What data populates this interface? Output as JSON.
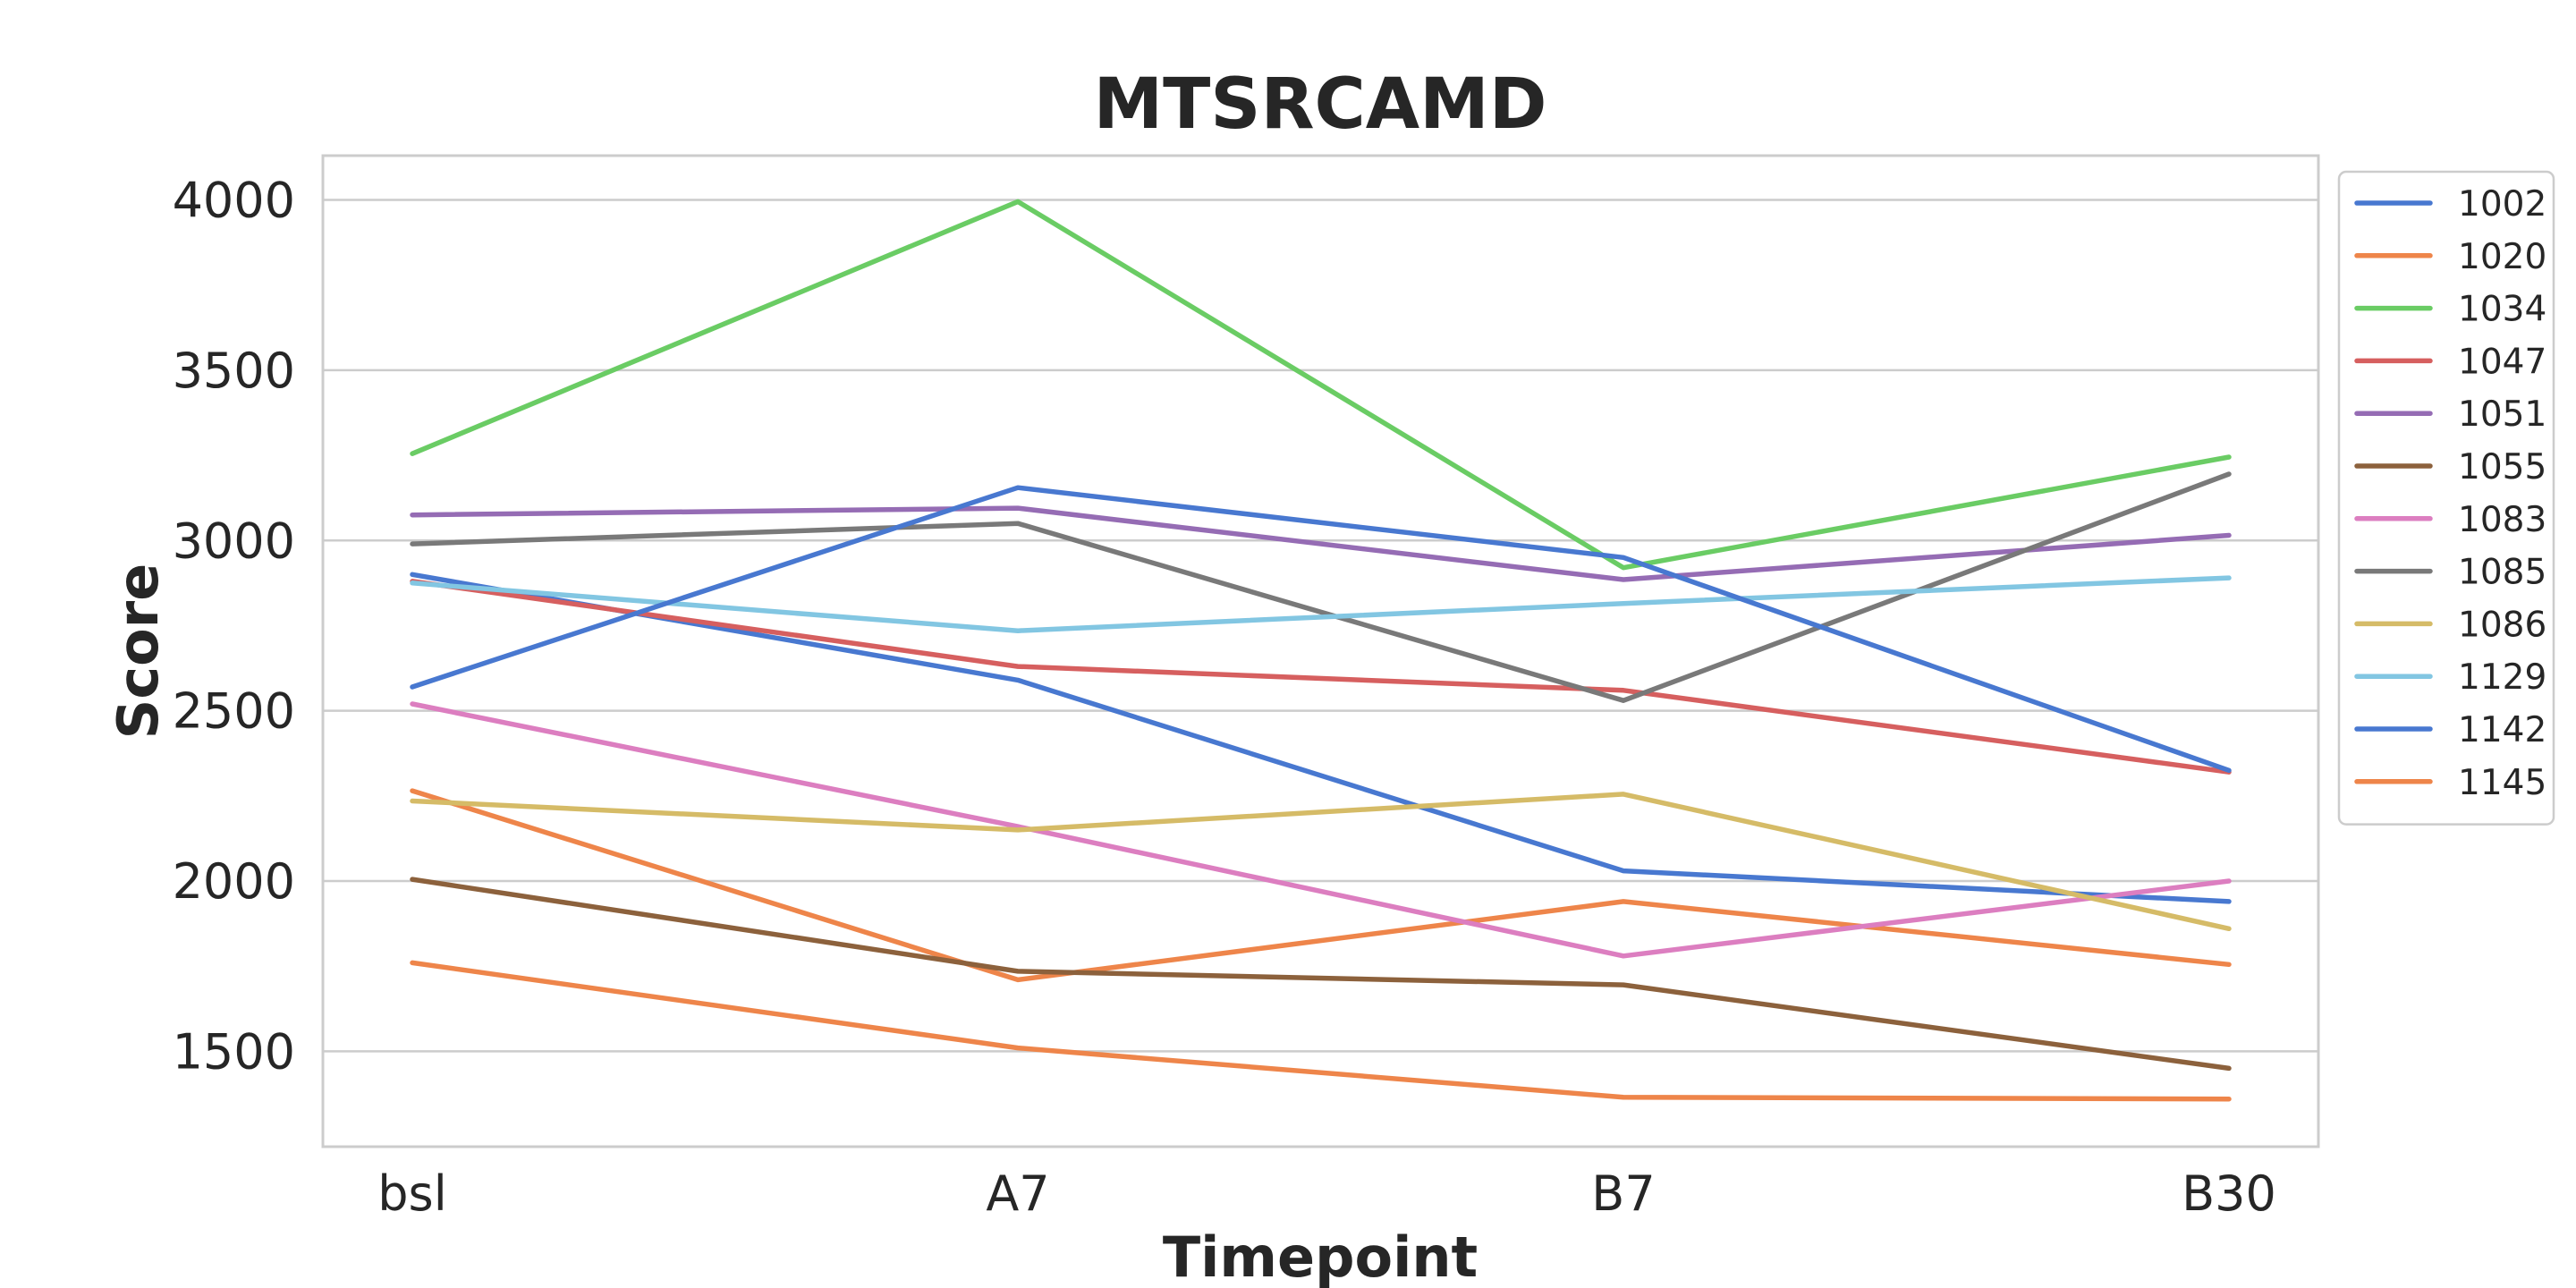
{
  "chart_data": {
    "type": "line",
    "title": "MTSRCAMD",
    "xlabel": "Timepoint",
    "ylabel": "Score",
    "categories": [
      "bsl",
      "A7",
      "B7",
      "B30"
    ],
    "yticks": [
      1500,
      2000,
      2500,
      3000,
      3500,
      4000
    ],
    "ylim": [
      1220,
      4130
    ],
    "grid": "horizontal",
    "legend_position": "outside-right",
    "series": [
      {
        "name": "1002",
        "color": "#4878d0",
        "values": [
          2900,
          2590,
          2030,
          1940
        ]
      },
      {
        "name": "1020",
        "color": "#ee854a",
        "values": [
          2265,
          1710,
          1940,
          1755
        ]
      },
      {
        "name": "1034",
        "color": "#6acc64",
        "values": [
          3255,
          3995,
          2920,
          3245
        ]
      },
      {
        "name": "1047",
        "color": "#d65f5f",
        "values": [
          2880,
          2630,
          2560,
          2320
        ]
      },
      {
        "name": "1051",
        "color": "#956cb4",
        "values": [
          3075,
          3095,
          2885,
          3015
        ]
      },
      {
        "name": "1055",
        "color": "#8c613c",
        "values": [
          2005,
          1735,
          1695,
          1450
        ]
      },
      {
        "name": "1083",
        "color": "#dc7ec0",
        "values": [
          2520,
          2160,
          1780,
          2000
        ]
      },
      {
        "name": "1085",
        "color": "#797979",
        "values": [
          2990,
          3050,
          2530,
          3195
        ]
      },
      {
        "name": "1086",
        "color": "#d5bb67",
        "values": [
          2235,
          2150,
          2255,
          1860
        ]
      },
      {
        "name": "1129",
        "color": "#82c6e2",
        "values": [
          2875,
          2735,
          2815,
          2890
        ]
      },
      {
        "name": "1142",
        "color": "#4878d0",
        "values": [
          2570,
          3155,
          2950,
          2325
        ]
      },
      {
        "name": "1145",
        "color": "#ee854a",
        "values": [
          1760,
          1510,
          1365,
          1360
        ]
      }
    ]
  }
}
